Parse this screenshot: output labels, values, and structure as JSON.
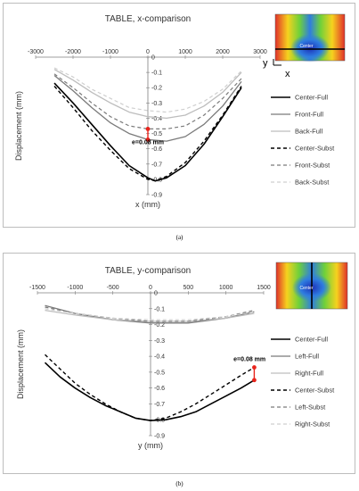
{
  "captions": [
    "(a)",
    "(b)"
  ],
  "chart_data": [
    {
      "type": "line",
      "title": "TABLE, x-comparison",
      "xlabel": "x (mm)",
      "ylabel": "Displacement (mm)",
      "xlim": [
        -3000,
        3000
      ],
      "ylim": [
        -0.9,
        0
      ],
      "xticks": [
        -3000,
        -2000,
        -1000,
        0,
        1000,
        2000,
        3000
      ],
      "xtick_labels": [
        "-3000",
        "-2000",
        "-1000",
        "0",
        "1000",
        "2000",
        "3000"
      ],
      "yticks": [
        0,
        -0.1,
        -0.2,
        -0.3,
        -0.4,
        -0.5,
        -0.6,
        -0.7,
        -0.8,
        -0.9
      ],
      "ytick_labels": [
        "0",
        "-0.1",
        "-0.2",
        "-0.3",
        "-0.4",
        "-0.5",
        "-0.6",
        "-0.7",
        "-0.8",
        "-0.9"
      ],
      "x_axis_at": 0,
      "grid": false,
      "legend_position": "right",
      "series": [
        {
          "name": "Center-Full",
          "color": "#000000",
          "dash": "solid",
          "width": 1.6,
          "x": [
            -2500,
            -2000,
            -1500,
            -1000,
            -500,
            0,
            200,
            500,
            1000,
            1500,
            2000,
            2500
          ],
          "y": [
            -0.17,
            -0.3,
            -0.44,
            -0.58,
            -0.71,
            -0.79,
            -0.81,
            -0.79,
            -0.71,
            -0.57,
            -0.39,
            -0.2
          ]
        },
        {
          "name": "Front-Full",
          "color": "#7a7a7a",
          "dash": "solid",
          "width": 1.3,
          "x": [
            -2500,
            -2000,
            -1500,
            -1000,
            -500,
            0,
            500,
            1000,
            1500,
            2000,
            2500
          ],
          "y": [
            -0.12,
            -0.22,
            -0.33,
            -0.43,
            -0.5,
            -0.54,
            -0.55,
            -0.52,
            -0.44,
            -0.32,
            -0.16
          ]
        },
        {
          "name": "Back-Full",
          "color": "#bdbdbd",
          "dash": "solid",
          "width": 1.3,
          "x": [
            -2500,
            -2000,
            -1500,
            -1000,
            -500,
            0,
            500,
            1000,
            1500,
            2000,
            2500
          ],
          "y": [
            -0.08,
            -0.15,
            -0.23,
            -0.3,
            -0.36,
            -0.39,
            -0.4,
            -0.38,
            -0.32,
            -0.23,
            -0.1
          ]
        },
        {
          "name": "Center-Subst",
          "color": "#000000",
          "dash": "4,3",
          "width": 1.4,
          "x": [
            -2500,
            -2000,
            -1500,
            -1000,
            -500,
            0,
            200,
            500,
            1000,
            1500,
            2000,
            2500
          ],
          "y": [
            -0.19,
            -0.33,
            -0.48,
            -0.61,
            -0.73,
            -0.8,
            -0.81,
            -0.78,
            -0.69,
            -0.55,
            -0.38,
            -0.19
          ]
        },
        {
          "name": "Front-Subst",
          "color": "#7a7a7a",
          "dash": "4,3",
          "width": 1.2,
          "x": [
            -2500,
            -2000,
            -1500,
            -1000,
            -500,
            0,
            500,
            1000,
            1500,
            2000,
            2500
          ],
          "y": [
            -0.11,
            -0.2,
            -0.3,
            -0.39,
            -0.45,
            -0.47,
            -0.47,
            -0.45,
            -0.38,
            -0.27,
            -0.14
          ]
        },
        {
          "name": "Back-Subst",
          "color": "#cfcfcf",
          "dash": "4,3",
          "width": 1.2,
          "x": [
            -2500,
            -2000,
            -1500,
            -1000,
            -500,
            0,
            500,
            1000,
            1500,
            2000,
            2500
          ],
          "y": [
            -0.07,
            -0.13,
            -0.21,
            -0.27,
            -0.33,
            -0.35,
            -0.36,
            -0.34,
            -0.29,
            -0.21,
            -0.09
          ]
        }
      ],
      "marker": {
        "x": 0,
        "y1": -0.47,
        "y2": -0.54,
        "color": "#e8241c",
        "label": "e=0.08 mm",
        "label_x": 0,
        "label_y": -0.57
      },
      "inset": {
        "label": "Center",
        "axis_labels": [
          "y",
          "x"
        ]
      }
    },
    {
      "type": "line",
      "title": "TABLE, y-comparison",
      "xlabel": "y (mm)",
      "ylabel": "Displacement (mm)",
      "xlim": [
        -1500,
        1500
      ],
      "ylim": [
        -0.9,
        0
      ],
      "xticks": [
        -1500,
        -1000,
        -500,
        0,
        500,
        1000,
        1500
      ],
      "xtick_labels": [
        "-1500",
        "-1000",
        "-500",
        "0",
        "500",
        "1000",
        "1500"
      ],
      "yticks": [
        0,
        -0.1,
        -0.2,
        -0.3,
        -0.4,
        -0.5,
        -0.6,
        -0.7,
        -0.8,
        -0.9
      ],
      "ytick_labels": [
        "0",
        "-0.1",
        "-0.2",
        "-0.3",
        "-0.4",
        "-0.5",
        "-0.6",
        "-0.7",
        "-0.8",
        "-0.9"
      ],
      "x_axis_at": 0,
      "grid": false,
      "legend_position": "right",
      "series": [
        {
          "name": "Center-Full",
          "color": "#000000",
          "dash": "solid",
          "width": 1.6,
          "x": [
            -1400,
            -1200,
            -1000,
            -800,
            -600,
            -400,
            -200,
            0,
            200,
            400,
            600,
            800,
            1000,
            1200,
            1375
          ],
          "y": [
            -0.44,
            -0.53,
            -0.6,
            -0.66,
            -0.71,
            -0.75,
            -0.79,
            -0.805,
            -0.8,
            -0.78,
            -0.75,
            -0.7,
            -0.65,
            -0.6,
            -0.55
          ]
        },
        {
          "name": "Left-Full",
          "color": "#7a7a7a",
          "dash": "solid",
          "width": 1.3,
          "x": [
            -1400,
            -1000,
            -500,
            0,
            500,
            1000,
            1375
          ],
          "y": [
            -0.08,
            -0.13,
            -0.17,
            -0.19,
            -0.19,
            -0.16,
            -0.12
          ]
        },
        {
          "name": "Right-Full",
          "color": "#bdbdbd",
          "dash": "solid",
          "width": 1.3,
          "x": [
            -1400,
            -1000,
            -500,
            0,
            500,
            1000,
            1375
          ],
          "y": [
            -0.11,
            -0.14,
            -0.17,
            -0.18,
            -0.18,
            -0.16,
            -0.13
          ]
        },
        {
          "name": "Center-Subst",
          "color": "#000000",
          "dash": "4,3",
          "width": 1.4,
          "x": [
            -1400,
            -1200,
            -1000,
            -800,
            -600,
            -400,
            -200,
            0,
            200,
            400,
            600,
            800,
            1000,
            1200,
            1375
          ],
          "y": [
            -0.39,
            -0.48,
            -0.57,
            -0.64,
            -0.7,
            -0.75,
            -0.79,
            -0.805,
            -0.79,
            -0.75,
            -0.7,
            -0.64,
            -0.58,
            -0.52,
            -0.47
          ]
        },
        {
          "name": "Left-Subst",
          "color": "#7a7a7a",
          "dash": "4,3",
          "width": 1.2,
          "x": [
            -1400,
            -1000,
            -500,
            0,
            500,
            1000,
            1375
          ],
          "y": [
            -0.09,
            -0.13,
            -0.16,
            -0.18,
            -0.18,
            -0.15,
            -0.11
          ]
        },
        {
          "name": "Right-Subst",
          "color": "#cfcfcf",
          "dash": "4,3",
          "width": 1.2,
          "x": [
            -1400,
            -1000,
            -500,
            0,
            500,
            1000,
            1375
          ],
          "y": [
            -0.1,
            -0.13,
            -0.16,
            -0.17,
            -0.17,
            -0.15,
            -0.12
          ]
        }
      ],
      "marker": {
        "x": 1375,
        "y1": -0.47,
        "y2": -0.55,
        "color": "#e8241c",
        "label": "e=0.08 mm",
        "label_x": 1100,
        "label_y": -0.43
      },
      "inset": {
        "label": "Center",
        "axis_labels": [],
        "vertical": true
      }
    }
  ]
}
